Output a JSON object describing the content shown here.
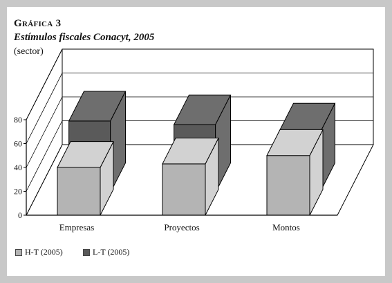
{
  "figure": {
    "label": "Gráfica 3",
    "subtitle": "Estímulos fiscales Conacyt, 2005",
    "unit": "(sector)"
  },
  "colors": {
    "background": "#c8c8c8",
    "panel": "#ffffff",
    "series_ht_front": "#b4b4b4",
    "series_ht_side": "#d2d2d2",
    "series_lt_front": "#5a5a5a",
    "series_lt_side": "#6e6e6e"
  },
  "chart_data": {
    "type": "bar",
    "title": "Estímulos fiscales Conacyt, 2005",
    "subtitle": "(sector)",
    "categories": [
      "Empresas",
      "Proyectos",
      "Montos"
    ],
    "series": [
      {
        "name": "H-T (2005)",
        "values": [
          40,
          43,
          50
        ]
      },
      {
        "name": "L-T (2005)",
        "values": [
          60,
          57,
          50
        ]
      }
    ],
    "ylim": [
      0,
      80
    ],
    "yticks": [
      0,
      20,
      40,
      60,
      80
    ],
    "grid": true,
    "legend": "bottom-left",
    "style": "3d"
  }
}
